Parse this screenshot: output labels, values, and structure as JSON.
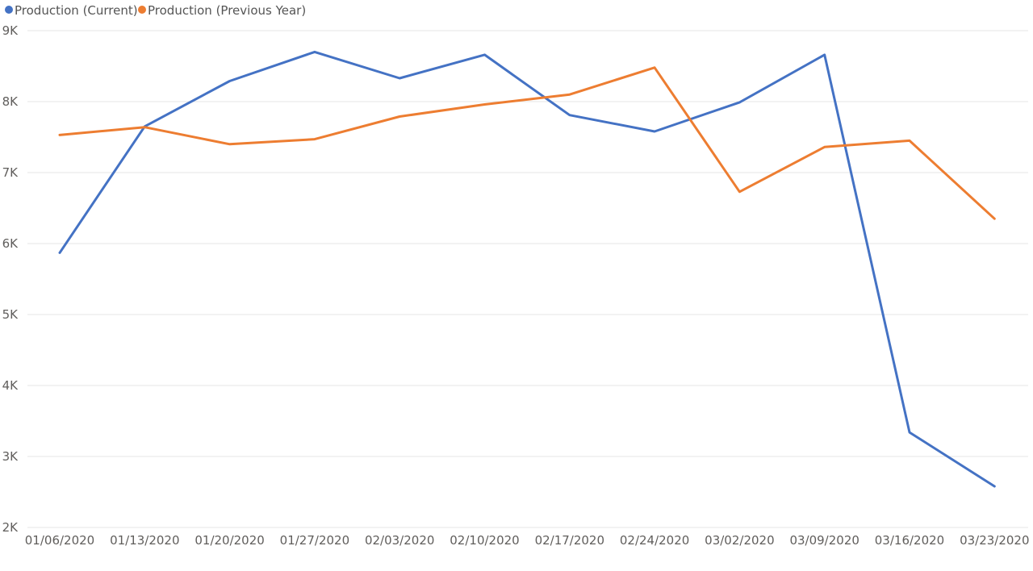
{
  "chart_data": {
    "type": "line",
    "x": [
      "01/06/2020",
      "01/13/2020",
      "01/20/2020",
      "01/27/2020",
      "02/03/2020",
      "02/10/2020",
      "02/17/2020",
      "02/24/2020",
      "03/02/2020",
      "03/09/2020",
      "03/16/2020",
      "03/23/2020"
    ],
    "series": [
      {
        "name": "Production (Current)",
        "color": "#4472C4",
        "values": [
          5870,
          7650,
          8290,
          8700,
          8330,
          8660,
          7810,
          7580,
          7990,
          8660,
          3340,
          2580
        ]
      },
      {
        "name": "Production (Previous Year)",
        "color": "#ED7D31",
        "values": [
          7530,
          7640,
          7400,
          7470,
          7790,
          7960,
          8100,
          8480,
          6730,
          7360,
          7450,
          6350
        ]
      }
    ],
    "y_ticks": [
      "2K",
      "3K",
      "4K",
      "5K",
      "6K",
      "7K",
      "8K",
      "9K"
    ],
    "y_tick_values": [
      2000,
      3000,
      4000,
      5000,
      6000,
      7000,
      8000,
      9000
    ],
    "ylim": [
      2000,
      9000
    ],
    "grid": true,
    "legend_position": "top-left"
  }
}
